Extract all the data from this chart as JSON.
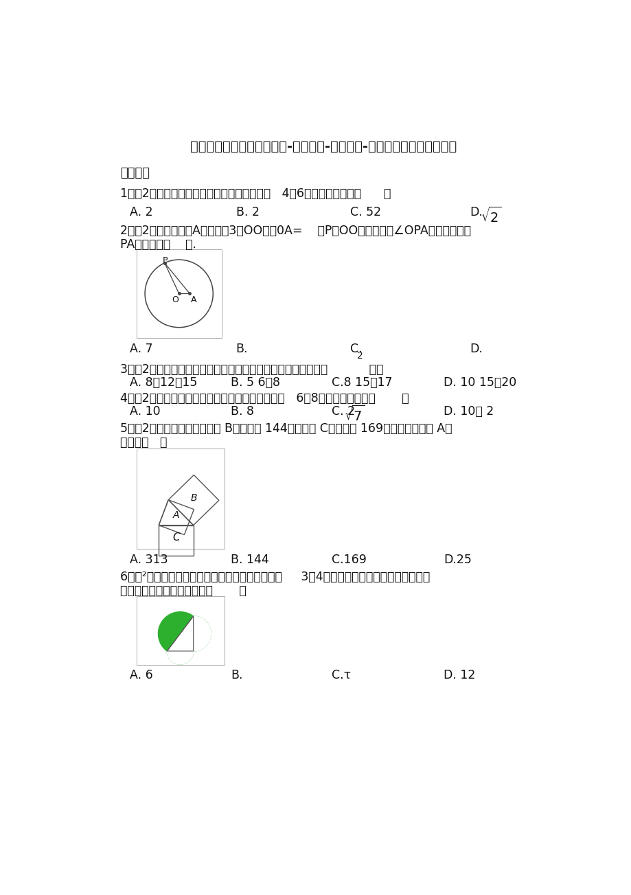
{
  "title": "八年级下册数学（人教版）-第十七章-勾股定理-同步提升练习（含答案）",
  "section": "、单选题",
  "bg_color": "#ffffff",
  "text_color": "#111111",
  "q1": "1．（2分）直角三角形的两条直角边长分别为   4和6，那么斜边长是（      ）",
  "q2_line1": "2．（2分）如图，点A在半径为3的ΟΟ内，0A=    ，P为ΟΟ上一点，当∠OPA取最大值时，",
  "q2_line2": "PA的长等于（    ）.",
  "q3": "3．（2分）下面各组数是三角形三边长，其中为直角三角形的是           （）",
  "q4": "4．（2分）已知一个直角三角形的两条边长分别是   6和8，则第三边长是（       ）",
  "q5_line1": "5．（2分）如图，已知正方形 B的面积为 144，正方形 C的面积为 169时，那么正方形 A的",
  "q5_line2": "面积为（   ）",
  "q6_line1": "6．（²分）如图，直角三角形两直角边的长分别为     3和4，以直角三角形的两直边为直径作",
  "q6_line2": "半圆，则阴影部分的面积是（       ）"
}
